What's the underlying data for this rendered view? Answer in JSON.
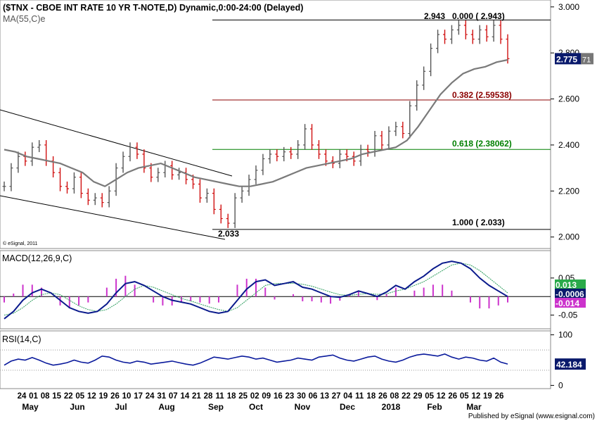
{
  "header": {
    "title": "($TNX - CBOE INT RATE 10 YR T-NOTE,D) Dynamic,0:00-24:00 (Delayed)",
    "ma_label": "MA(55,C)e",
    "copyright": "© eSignal, 2011",
    "footer": "Published by eSignal (www.esignal.com)"
  },
  "colors": {
    "up_bar": "#555555",
    "down_bar": "#d01010",
    "ma_line": "#7a7a7a",
    "fib_0": "#000000",
    "fib_382": "#8b0000",
    "fib_618": "#008000",
    "fib_100": "#000000",
    "macd_line": "#0a1a8c",
    "signal_line": "#2e9e5e",
    "histogram": "#cc33cc",
    "rsi_line": "#0a1a9c",
    "price_tag_bg": "#0a1a6c",
    "macd_tag_green": "#2aaa4a",
    "macd_tag_navy": "#0a1a6c",
    "macd_tag_magenta": "#cc33cc"
  },
  "chart_data": [
    {
      "panel": "price",
      "type": "ohlc",
      "ylim": [
        1.95,
        3.03
      ],
      "y_ticks": [
        "3.000",
        "2.800",
        "2.600",
        "2.400",
        "2.200",
        "2.000"
      ],
      "x_tick_labels": [
        "24",
        "01",
        "08",
        "15",
        "22",
        "05",
        "12",
        "19",
        "26",
        "10",
        "17",
        "24",
        "31",
        "07",
        "14",
        "21",
        "28",
        "11",
        "18",
        "25",
        "02",
        "09",
        "16",
        "23",
        "30",
        "06",
        "13",
        "27",
        "04",
        "11",
        "18",
        "26",
        "08",
        "22",
        "29",
        "05",
        "12",
        "26",
        "05",
        "12",
        "19",
        "26"
      ],
      "month_labels": [
        "May",
        "Jun",
        "Jul",
        "Aug",
        "Sep",
        "Oct",
        "Nov",
        "Dec",
        "2018",
        "Feb",
        "Mar"
      ],
      "closes": [
        2.22,
        2.3,
        2.35,
        2.33,
        2.39,
        2.4,
        2.33,
        2.28,
        2.22,
        2.21,
        2.26,
        2.19,
        2.16,
        2.17,
        2.15,
        2.2,
        2.3,
        2.35,
        2.39,
        2.36,
        2.3,
        2.26,
        2.28,
        2.31,
        2.27,
        2.28,
        2.25,
        2.23,
        2.17,
        2.19,
        2.12,
        2.08,
        2.06,
        2.17,
        2.2,
        2.25,
        2.29,
        2.34,
        2.36,
        2.35,
        2.37,
        2.36,
        2.4,
        2.47,
        2.4,
        2.36,
        2.33,
        2.32,
        2.36,
        2.35,
        2.33,
        2.38,
        2.37,
        2.44,
        2.4,
        2.46,
        2.48,
        2.45,
        2.57,
        2.66,
        2.72,
        2.82,
        2.88,
        2.86,
        2.9,
        2.92,
        2.88,
        2.86,
        2.9,
        2.87,
        2.92,
        2.86,
        2.775
      ],
      "ma55": [
        2.38,
        2.37,
        2.35,
        2.34,
        2.33,
        2.32,
        2.3,
        2.28,
        2.24,
        2.22,
        2.25,
        2.28,
        2.3,
        2.31,
        2.32,
        2.3,
        2.28,
        2.26,
        2.25,
        2.24,
        2.23,
        2.22,
        2.22,
        2.23,
        2.24,
        2.26,
        2.28,
        2.3,
        2.31,
        2.32,
        2.33,
        2.34,
        2.36,
        2.37,
        2.38,
        2.39,
        2.42,
        2.48,
        2.55,
        2.62,
        2.67,
        2.71,
        2.73,
        2.74,
        2.76,
        2.77
      ],
      "fib_levels": [
        {
          "ratio_label": "0.000 ( 2.943)",
          "value": 2.943
        },
        {
          "ratio_label": "0.382 (2.59538)",
          "value": 2.59538
        },
        {
          "ratio_label": "0.618 (2.38062)",
          "value": 2.38062
        },
        {
          "ratio_label": "1.000 ( 2.033)",
          "value": 2.033
        }
      ],
      "high_label": "2.943",
      "low_label": "2.033",
      "last_price_tag": "2.775",
      "ma_tag_suffix": "71"
    },
    {
      "panel": "macd",
      "title": "MACD(12,26,9,C)",
      "type": "line",
      "ylim": [
        -0.085,
        0.12
      ],
      "y_ticks": [
        "0.05",
        "-0.05"
      ],
      "macd_values": [
        -0.06,
        -0.04,
        -0.01,
        0.01,
        0.02,
        0.01,
        -0.01,
        -0.03,
        -0.04,
        -0.045,
        -0.04,
        -0.02,
        0.01,
        0.035,
        0.04,
        0.03,
        0.015,
        0.0,
        -0.01,
        -0.015,
        -0.02,
        -0.03,
        -0.04,
        -0.045,
        -0.04,
        -0.01,
        0.02,
        0.04,
        0.045,
        0.03,
        0.035,
        0.04,
        0.025,
        0.02,
        0.01,
        0.0,
        -0.002,
        0.005,
        0.015,
        0.008,
        0.0,
        0.012,
        0.03,
        0.02,
        0.04,
        0.055,
        0.075,
        0.09,
        0.095,
        0.09,
        0.075,
        0.05,
        0.03,
        0.015,
        0.0
      ],
      "signal_values": [
        -0.05,
        -0.045,
        -0.03,
        -0.01,
        0.005,
        0.01,
        0.005,
        -0.01,
        -0.025,
        -0.035,
        -0.04,
        -0.035,
        -0.02,
        0.0,
        0.02,
        0.03,
        0.025,
        0.015,
        0.005,
        -0.005,
        -0.012,
        -0.02,
        -0.028,
        -0.035,
        -0.04,
        -0.03,
        -0.01,
        0.01,
        0.03,
        0.035,
        0.035,
        0.036,
        0.033,
        0.028,
        0.02,
        0.012,
        0.005,
        0.003,
        0.006,
        0.008,
        0.006,
        0.007,
        0.015,
        0.02,
        0.03,
        0.04,
        0.055,
        0.07,
        0.085,
        0.09,
        0.085,
        0.07,
        0.05,
        0.03,
        0.01
      ],
      "tags": [
        "0.013",
        "-0.0006",
        "-0.014"
      ]
    },
    {
      "panel": "rsi",
      "title": "RSI(14,C)",
      "type": "line",
      "ylim": [
        -5,
        105
      ],
      "y_ticks": [
        "100",
        "0"
      ],
      "reference_levels": [
        70,
        30
      ],
      "values": [
        40,
        48,
        52,
        50,
        55,
        50,
        44,
        40,
        42,
        45,
        50,
        46,
        44,
        50,
        58,
        56,
        50,
        46,
        44,
        48,
        46,
        42,
        44,
        46,
        48,
        45,
        42,
        40,
        44,
        50,
        56,
        54,
        52,
        55,
        58,
        56,
        52,
        54,
        50,
        46,
        48,
        50,
        54,
        52,
        50,
        56,
        58,
        60,
        54,
        50,
        48,
        52,
        56,
        58,
        52,
        48,
        46,
        50,
        56,
        60,
        62,
        60,
        58,
        62,
        56,
        52,
        56,
        54,
        50,
        48,
        54,
        46,
        42.184
      ],
      "last_value_tag": "42.184"
    }
  ]
}
